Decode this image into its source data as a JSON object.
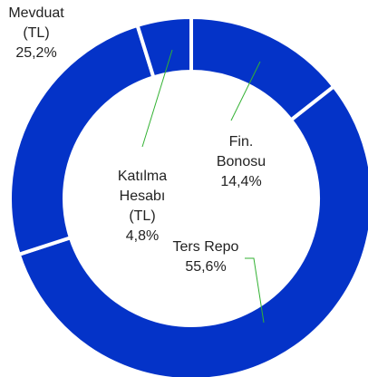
{
  "chart_data": {
    "type": "donut",
    "categories": [
      "Fin. Bonosu",
      "Ters Repo",
      "Mevduat (TL)",
      "Katılma Hesabı (TL)"
    ],
    "values": [
      14.4,
      55.6,
      25.2,
      4.8
    ],
    "value_labels": [
      "14,4%",
      "55,6%",
      "25,2%",
      "4,8%"
    ],
    "color": "#0433c8"
  }
}
